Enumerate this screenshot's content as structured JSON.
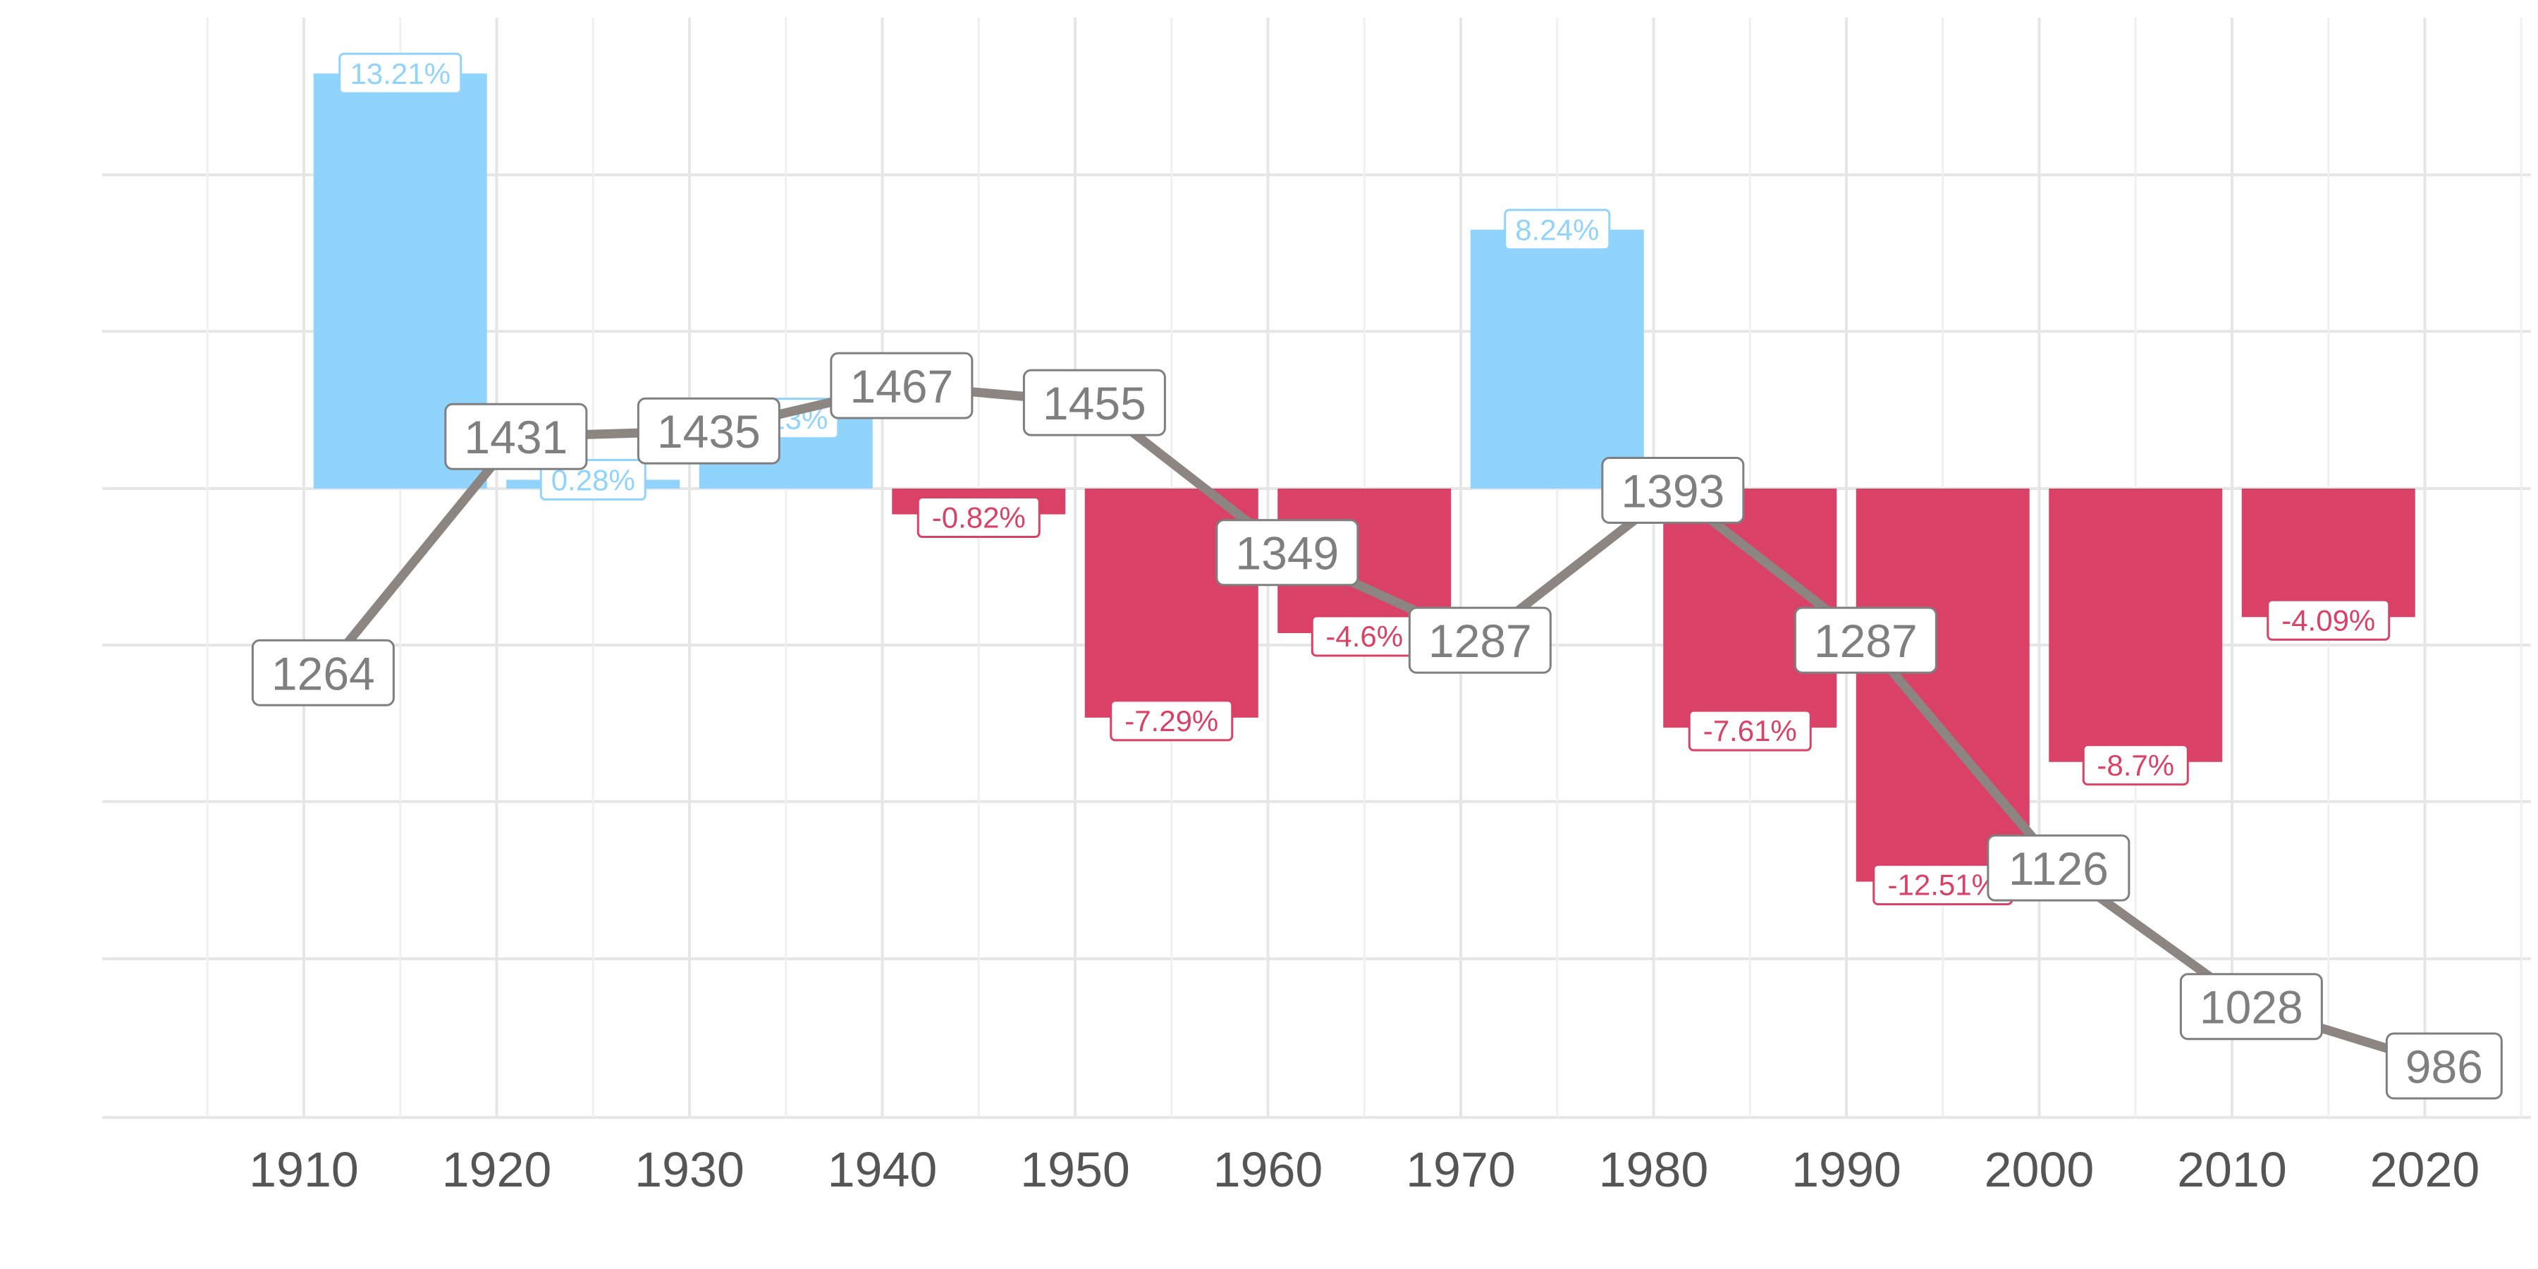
{
  "colors": {
    "positive": "#90d4fd",
    "negative": "#d94266",
    "line": "#8c8581",
    "label_text": "#7f7f7f",
    "grid": "#e6e6e6",
    "tick_text": "#555555"
  },
  "chart_data": {
    "type": "bar+line",
    "grid": true,
    "x_ticks": [
      1910,
      1920,
      1930,
      1940,
      1950,
      1960,
      1970,
      1980,
      1990,
      2000,
      2010,
      2020
    ],
    "series": [
      {
        "kind": "bar",
        "categories": [
          1915,
          1925,
          1935,
          1945,
          1955,
          1965,
          1975,
          1985,
          1995,
          2005,
          2015
        ],
        "values": [
          13.21,
          0.28,
          2.23,
          -0.82,
          -7.29,
          -4.6,
          8.24,
          -7.61,
          -12.51,
          -8.7,
          -4.09
        ],
        "labels": [
          "13.21%",
          "0.28%",
          "2.23%",
          "-0.82%",
          "-7.29%",
          "-4.6%",
          "8.24%",
          "-7.61%",
          "-12.51%",
          "-8.7%",
          "-4.09%"
        ]
      },
      {
        "kind": "line",
        "x": [
          1911,
          1921,
          1931,
          1941,
          1951,
          1961,
          1971,
          1981,
          1991,
          2001,
          2011,
          2021
        ],
        "values": [
          1264,
          1431,
          1435,
          1467,
          1455,
          1349,
          1287,
          1393,
          1287,
          1126,
          1028,
          986
        ]
      }
    ]
  }
}
